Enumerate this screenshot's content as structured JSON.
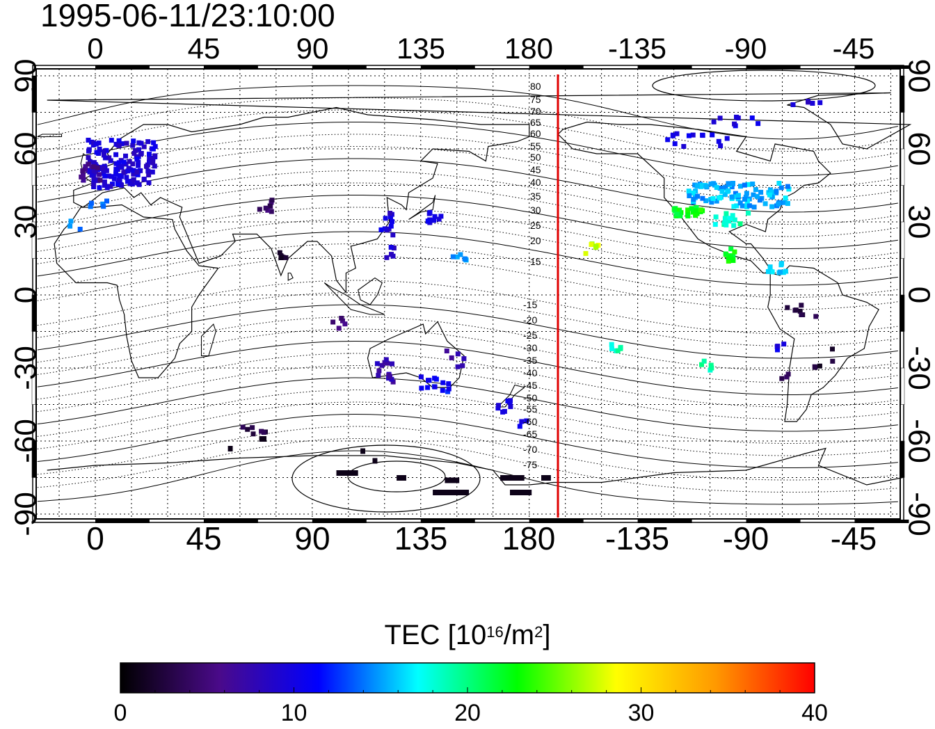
{
  "timestamp": "1995-06-11/23:10:00",
  "map": {
    "top_lon_ticks": [
      "0",
      "45",
      "90",
      "135",
      "180",
      "-135",
      "-90",
      "-45"
    ],
    "bottom_lon_ticks": [
      "0",
      "45",
      "90",
      "135",
      "180",
      "-135",
      "-90",
      "-45"
    ],
    "left_lat_ticks": [
      "90",
      "60",
      "30",
      "0",
      "-30",
      "-60",
      "-90"
    ],
    "right_lat_ticks": [
      "90",
      "60",
      "30",
      "0",
      "-30",
      "-60",
      "-90"
    ],
    "contour_labels_north": [
      "80",
      "75",
      "70",
      "65",
      "60",
      "55",
      "50",
      "45",
      "40",
      "35",
      "30",
      "25",
      "20",
      "15"
    ],
    "contour_labels_south": [
      "-15",
      "-20",
      "-25",
      "-30",
      "-35",
      "-40",
      "-45",
      "-50",
      "-55",
      "-60",
      "-65",
      "-70",
      "-75"
    ],
    "terminator_color": "#e00000",
    "grid": true
  },
  "colorbar": {
    "title": "TEC  [10",
    "title_exp": "16",
    "title_mid": "/m",
    "title_exp2": "2",
    "title_end": "]",
    "tick_labels": [
      "0",
      "10",
      "20",
      "30",
      "40"
    ],
    "range": [
      0,
      40
    ],
    "colormap": [
      "#000000",
      "#4a0a8a",
      "#0000ff",
      "#00ffff",
      "#00ff00",
      "#ffff00",
      "#ff9900",
      "#ff0000"
    ]
  }
}
